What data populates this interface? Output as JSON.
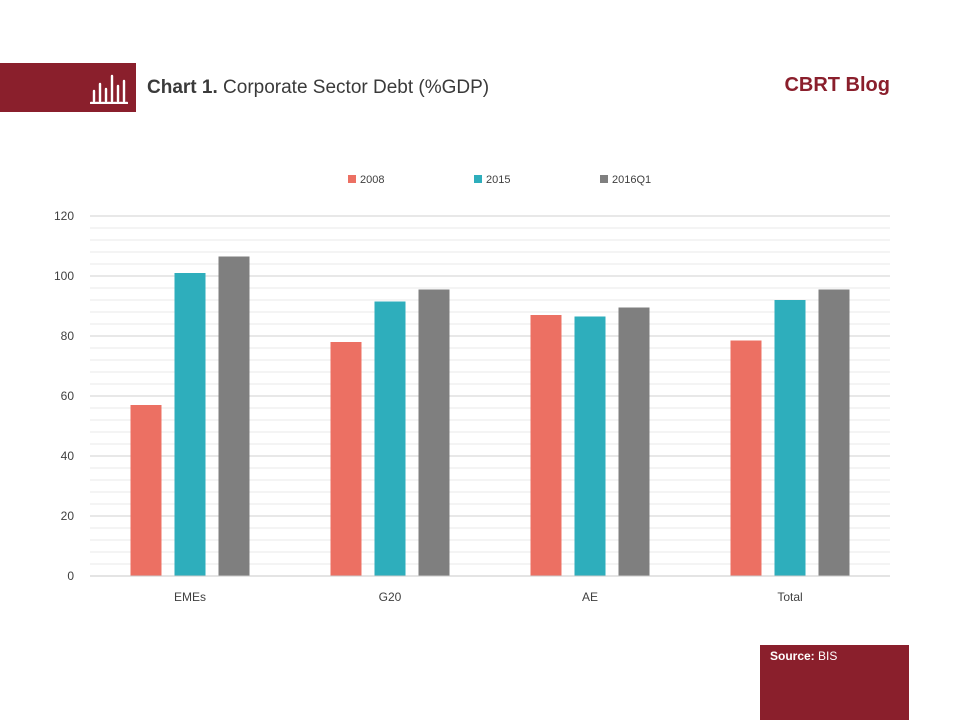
{
  "header": {
    "title_prefix": "Chart 1.",
    "title_text": "Corporate Sector Debt (%GDP)",
    "blog_name": "CBRT Blog",
    "icon": "bar-chart-icon"
  },
  "source": {
    "label": "Source:",
    "value": "BIS"
  },
  "colors": {
    "brand": "#8a1f2c",
    "series_2008": "#ec7063",
    "series_2015": "#2eaebc",
    "series_2016Q1": "#7f7f7f"
  },
  "chart_data": {
    "type": "bar",
    "categories": [
      "EMEs",
      "G20",
      "AE",
      "Total"
    ],
    "series": [
      {
        "name": "2008",
        "values": [
          57,
          78,
          87,
          78.5
        ],
        "color": "#ec7063"
      },
      {
        "name": "2015",
        "values": [
          101,
          91.5,
          86.5,
          92
        ],
        "color": "#2eaebc"
      },
      {
        "name": "2016Q1",
        "values": [
          106.5,
          95.5,
          89.5,
          95.5
        ],
        "color": "#7f7f7f"
      }
    ],
    "ylim": [
      0,
      120
    ],
    "yticks": [
      "0",
      "20",
      "40",
      "60",
      "80",
      "100",
      "120"
    ],
    "grid": true,
    "legend": "top-center"
  }
}
